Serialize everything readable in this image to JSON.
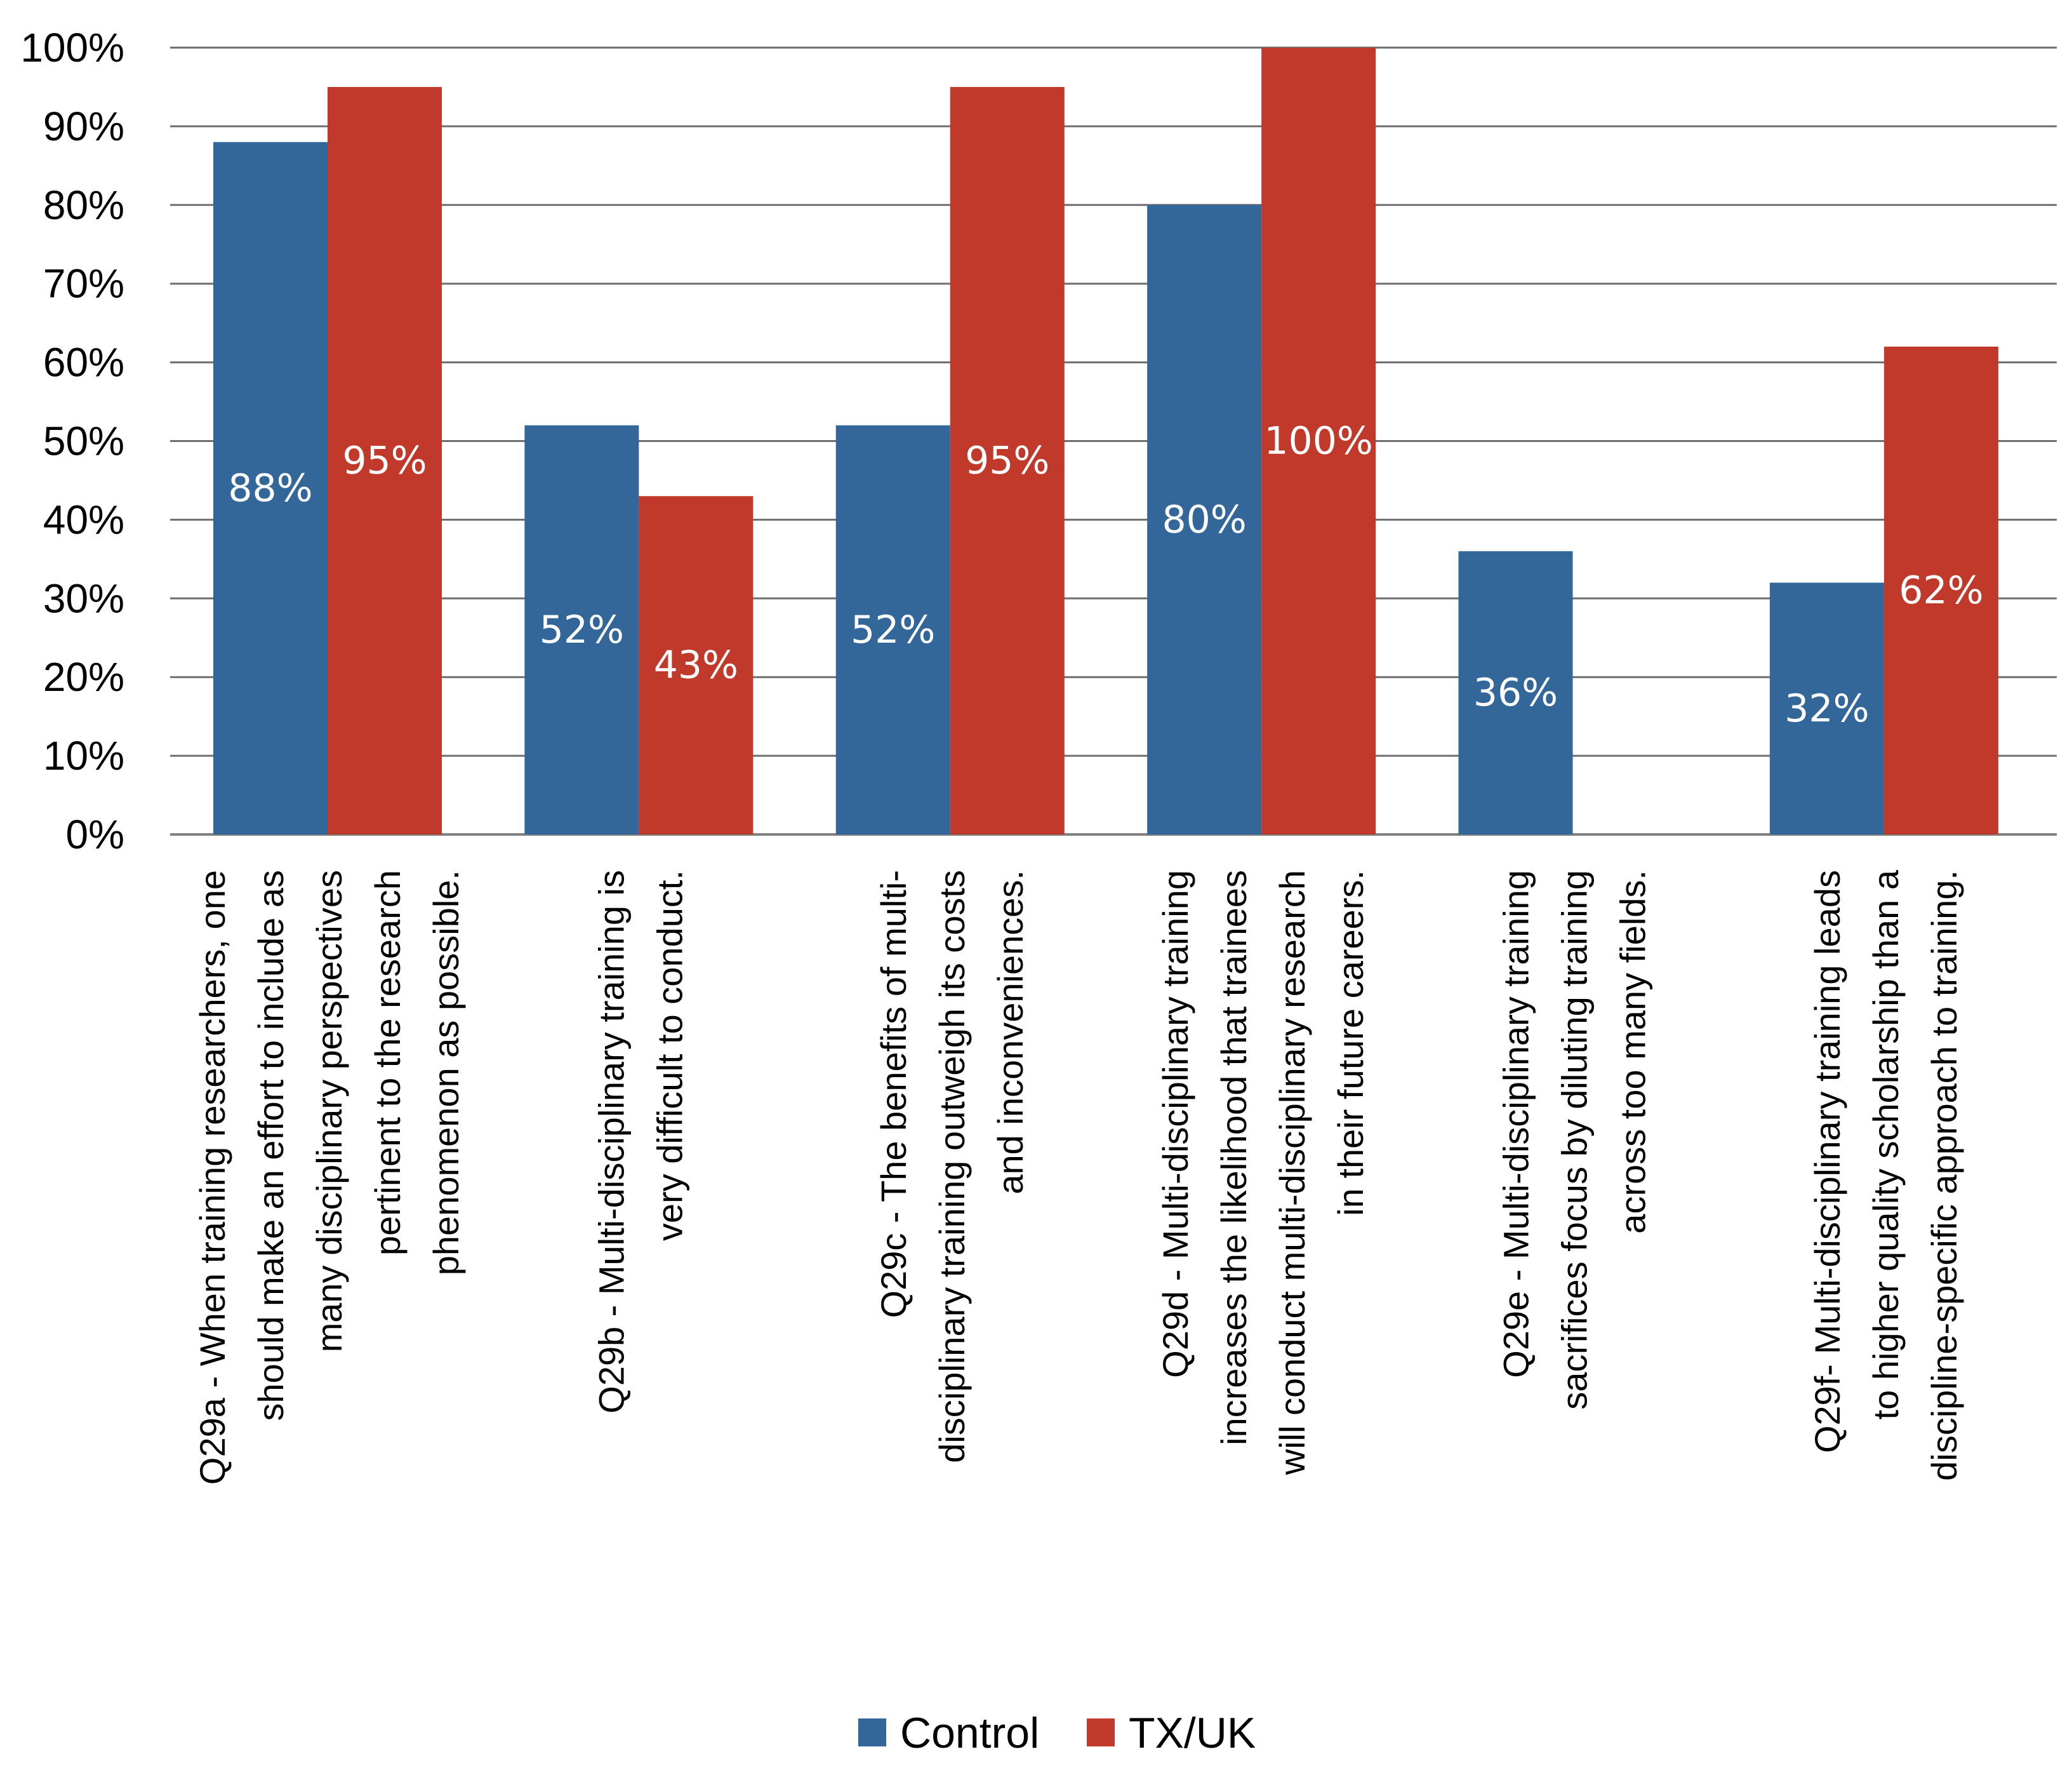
{
  "chart_data": {
    "type": "bar",
    "categories": [
      [
        "Q29a - When training researchers, one",
        "should make an effort to include as",
        "many disciplinary perspectives",
        "pertinent to the research",
        "phenomenon as possible."
      ],
      [
        "Q29b - Multi-disciplinary training is",
        "very difficult to conduct."
      ],
      [
        "Q29c - The benefits of multi-",
        "disciplinary training outweigh its costs",
        "and inconveniences."
      ],
      [
        "Q29d - Multi-disciplinary training",
        "increases the likelihood that trainees",
        "will conduct multi-disciplinary research",
        "in their future careers."
      ],
      [
        "Q29e -  Multi-disciplinary training",
        "sacrifices focus by diluting training",
        "across too many fields."
      ],
      [
        "Q29f- Multi-disciplinary training leads",
        "to higher quality scholarship than a",
        "discipline-specific approach to training."
      ]
    ],
    "series": [
      {
        "name": "Control",
        "color": "#336699",
        "values": [
          88,
          52,
          52,
          80,
          36,
          32
        ],
        "labels": [
          "88%",
          "52%",
          "52%",
          "80%",
          "36%",
          "32%"
        ]
      },
      {
        "name": "TX/UK",
        "color": "#C0392B",
        "values": [
          95,
          43,
          95,
          100,
          null,
          62
        ],
        "labels": [
          "95%",
          "43%",
          "95%",
          "100%",
          "",
          "62%"
        ]
      }
    ],
    "y_ticks": [
      "0%",
      "10%",
      "20%",
      "30%",
      "40%",
      "50%",
      "60%",
      "70%",
      "80%",
      "90%",
      "100%"
    ],
    "ylim": [
      0,
      100
    ],
    "grid": true,
    "legend_position": "bottom"
  }
}
